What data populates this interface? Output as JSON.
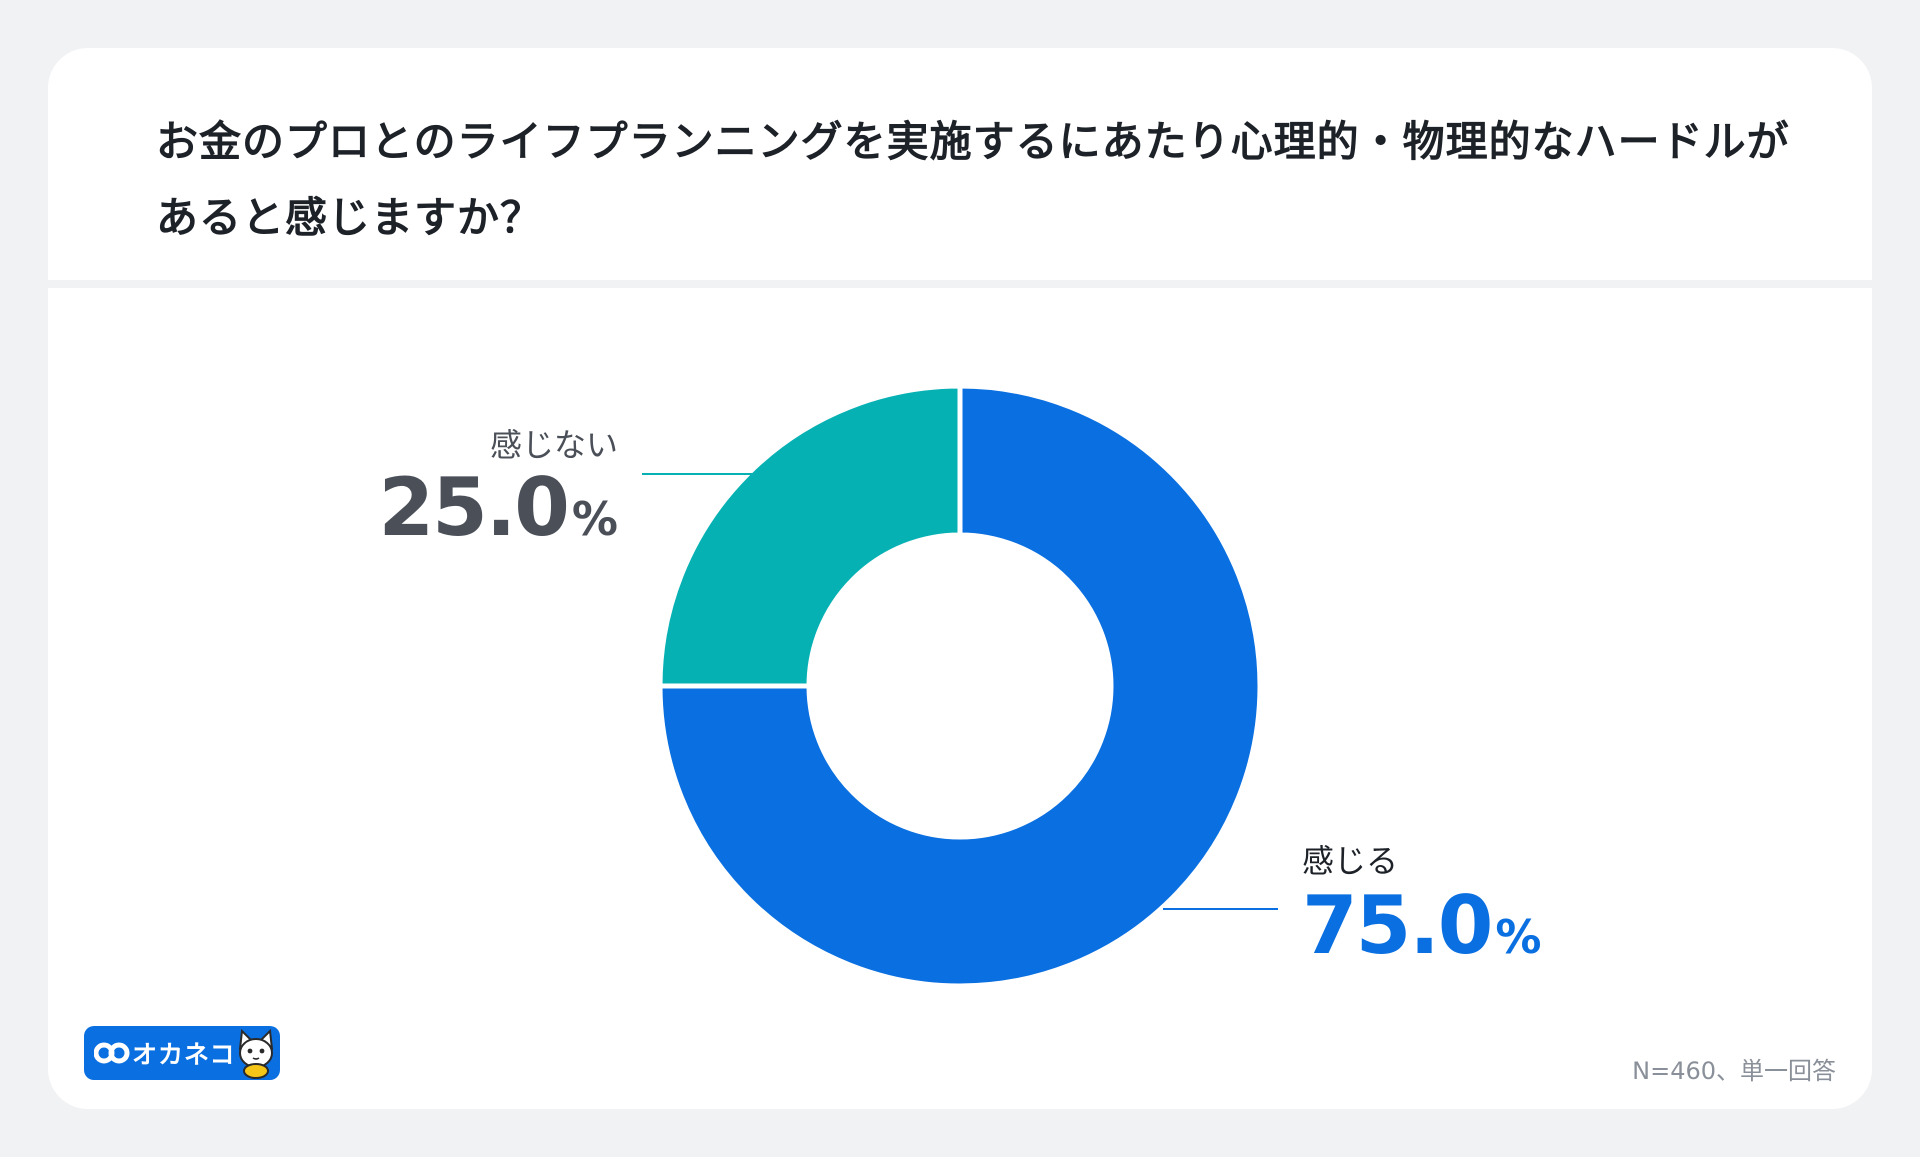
{
  "title": "お金のプロとのライフプランニングを実施するにあたり心理的・物理的なハードルがあると感じますか？",
  "footnote": "N=460、単一回答",
  "logo_text": "オカネコ",
  "chart_data": {
    "type": "pie",
    "donut": true,
    "title": "お金のプロとのライフプランニングを実施するにあたり心理的・物理的なハードルがあると感じますか？",
    "categories": [
      "感じる",
      "感じない"
    ],
    "values": [
      75.0,
      25.0
    ],
    "value_labels": [
      "75.0",
      "25.0"
    ],
    "unit": "%",
    "colors": [
      "#0a6fe0",
      "#06b1b4"
    ],
    "label_colors": [
      "#0a6fe0",
      "#4a4f58"
    ],
    "name_colors": [
      "#1d2128",
      "#4a4f58"
    ]
  }
}
